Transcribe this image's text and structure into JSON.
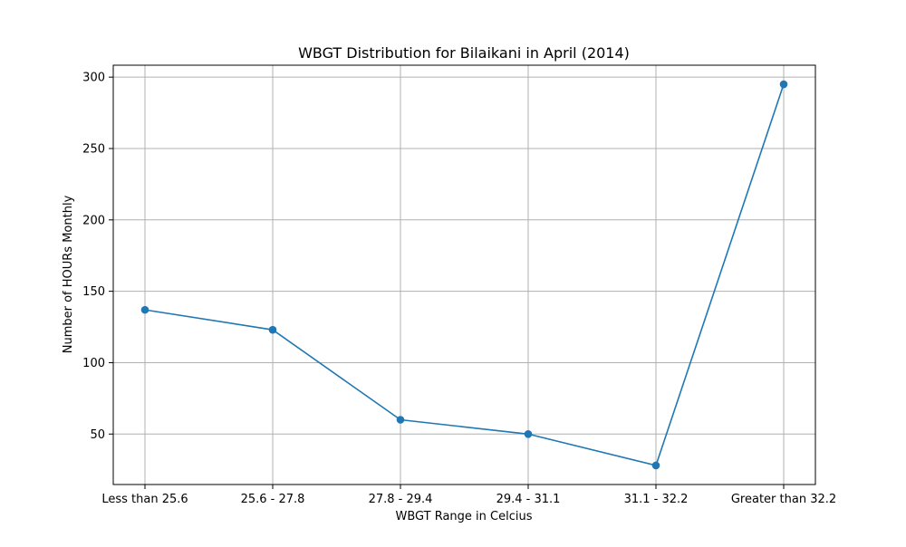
{
  "chart_data": {
    "type": "line",
    "title": "WBGT Distribution for Bilaikani in April (2014)",
    "xlabel": "WBGT Range in Celcius",
    "ylabel": "Number of HOURs Monthly",
    "categories": [
      "Less than 25.6",
      "25.6 - 27.8",
      "27.8 - 29.4",
      "29.4 - 31.1",
      "31.1 - 32.2",
      "Greater than 32.2"
    ],
    "series": [
      {
        "values": [
          137,
          123,
          60,
          50,
          28,
          295
        ],
        "color": "#1f77b4",
        "marker": "circle"
      }
    ],
    "ylim": [
      14.65,
      308.35
    ],
    "yticks": [
      50,
      100,
      150,
      200,
      250,
      300
    ],
    "ytick_labels": [
      "50",
      "100",
      "150",
      "200",
      "250",
      "300"
    ],
    "grid": true,
    "legend": "none"
  }
}
